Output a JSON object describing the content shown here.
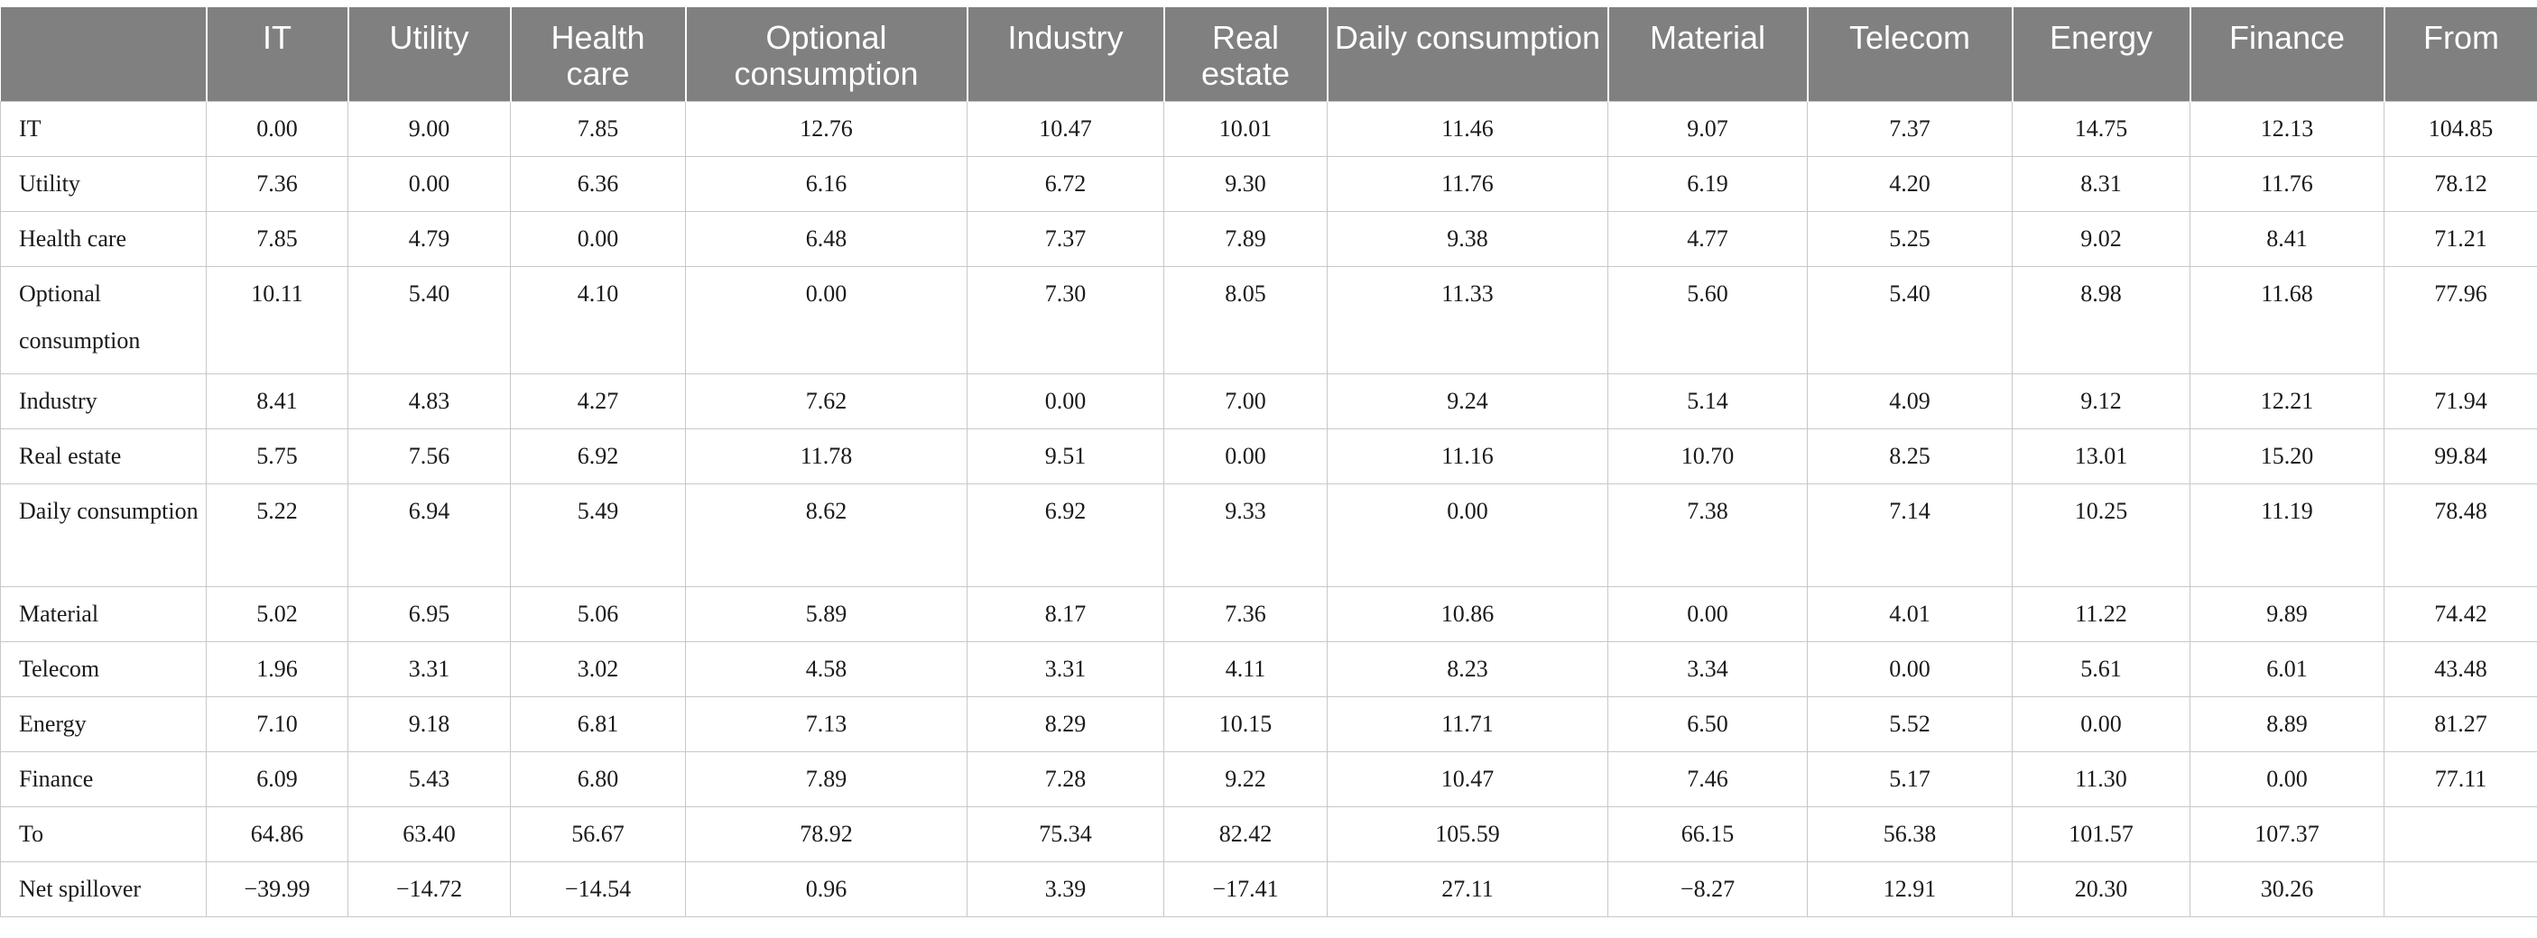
{
  "table": {
    "headers": [
      "",
      "IT",
      "Utility",
      "Health care",
      "Optional consumption",
      "Industry",
      "Real estate",
      "Daily consumption",
      "Material",
      "Telecom",
      "Energy",
      "Finance",
      "From"
    ],
    "rows": [
      {
        "label": "IT",
        "values": [
          "0.00",
          "9.00",
          "7.85",
          "12.76",
          "10.47",
          "10.01",
          "11.46",
          "9.07",
          "7.37",
          "14.75",
          "12.13",
          "104.85"
        ]
      },
      {
        "label": "Utility",
        "values": [
          "7.36",
          "0.00",
          "6.36",
          "6.16",
          "6.72",
          "9.30",
          "11.76",
          "6.19",
          "4.20",
          "8.31",
          "11.76",
          "78.12"
        ]
      },
      {
        "label": "Health care",
        "values": [
          "7.85",
          "4.79",
          "0.00",
          "6.48",
          "7.37",
          "7.89",
          "9.38",
          "4.77",
          "5.25",
          "9.02",
          "8.41",
          "71.21"
        ]
      },
      {
        "label": "Optional consumption",
        "values": [
          "10.11",
          "5.40",
          "4.10",
          "0.00",
          "7.30",
          "8.05",
          "11.33",
          "5.60",
          "5.40",
          "8.98",
          "11.68",
          "77.96"
        ]
      },
      {
        "label": "Industry",
        "values": [
          "8.41",
          "4.83",
          "4.27",
          "7.62",
          "0.00",
          "7.00",
          "9.24",
          "5.14",
          "4.09",
          "9.12",
          "12.21",
          "71.94"
        ]
      },
      {
        "label": "Real estate",
        "values": [
          "5.75",
          "7.56",
          "6.92",
          "11.78",
          "9.51",
          "0.00",
          "11.16",
          "10.70",
          "8.25",
          "13.01",
          "15.20",
          "99.84"
        ]
      },
      {
        "label": "Daily consumption",
        "values": [
          "5.22",
          "6.94",
          "5.49",
          "8.62",
          "6.92",
          "9.33",
          "0.00",
          "7.38",
          "7.14",
          "10.25",
          "11.19",
          "78.48"
        ]
      },
      {
        "label": "Material",
        "values": [
          "5.02",
          "6.95",
          "5.06",
          "5.89",
          "8.17",
          "7.36",
          "10.86",
          "0.00",
          "4.01",
          "11.22",
          "9.89",
          "74.42"
        ]
      },
      {
        "label": "Telecom",
        "values": [
          "1.96",
          "3.31",
          "3.02",
          "4.58",
          "3.31",
          "4.11",
          "8.23",
          "3.34",
          "0.00",
          "5.61",
          "6.01",
          "43.48"
        ]
      },
      {
        "label": "Energy",
        "values": [
          "7.10",
          "9.18",
          "6.81",
          "7.13",
          "8.29",
          "10.15",
          "11.71",
          "6.50",
          "5.52",
          "0.00",
          "8.89",
          "81.27"
        ]
      },
      {
        "label": "Finance",
        "values": [
          "6.09",
          "5.43",
          "6.80",
          "7.89",
          "7.28",
          "9.22",
          "10.47",
          "7.46",
          "5.17",
          "11.30",
          "0.00",
          "77.11"
        ]
      },
      {
        "label": "To",
        "values": [
          "64.86",
          "63.40",
          "56.67",
          "78.92",
          "75.34",
          "82.42",
          "105.59",
          "66.15",
          "56.38",
          "101.57",
          "107.37",
          ""
        ]
      },
      {
        "label": "Net spillover",
        "values": [
          "−39.99",
          "−14.72",
          "−14.54",
          "0.96",
          "3.39",
          "−17.41",
          "27.11",
          "−8.27",
          "12.91",
          "20.30",
          "30.26",
          ""
        ]
      }
    ]
  }
}
